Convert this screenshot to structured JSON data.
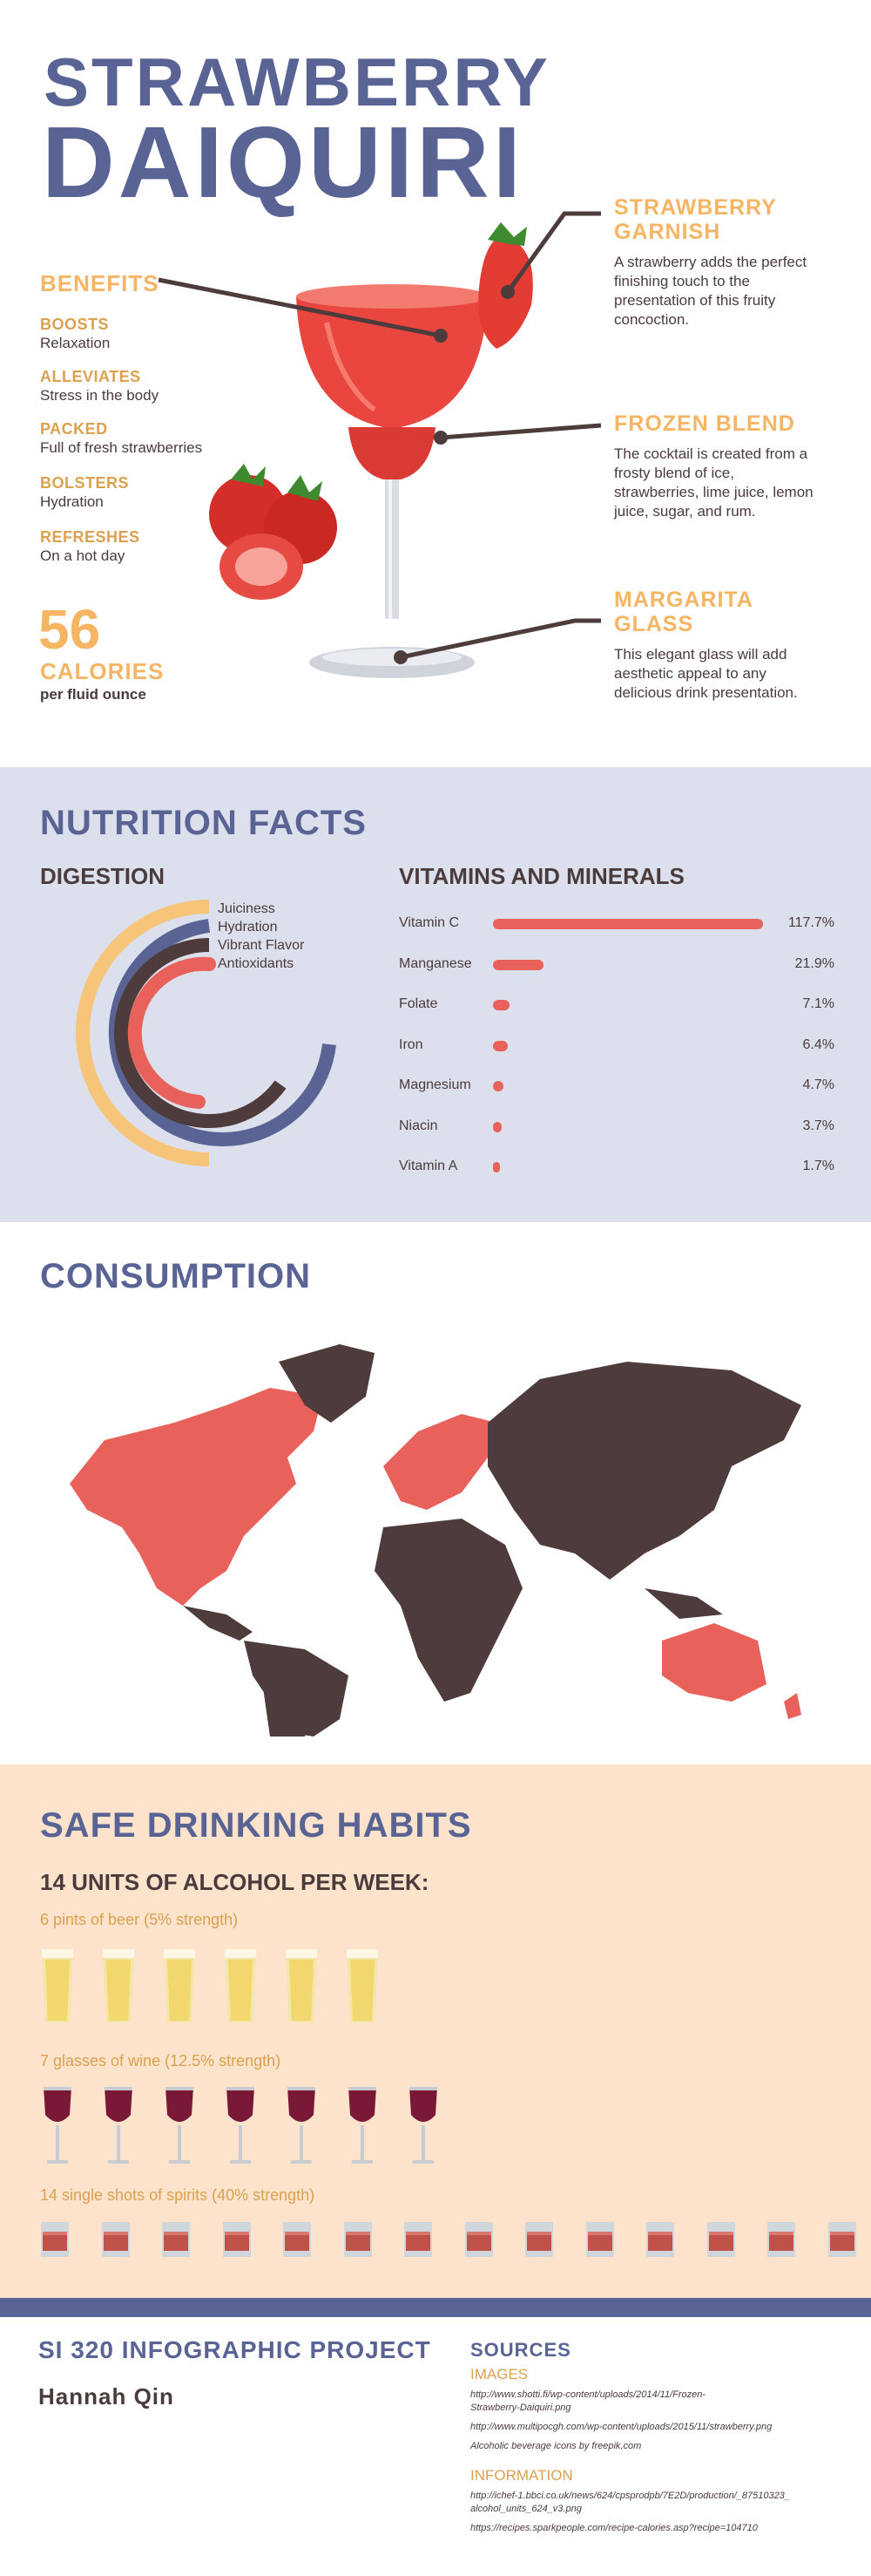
{
  "header": {
    "title_line1": "STRAWBERRY",
    "title_line2": "DAIQUIRI"
  },
  "benefits": {
    "heading": "BENEFITS",
    "items": [
      {
        "label": "BOOSTS",
        "desc": "Relaxation"
      },
      {
        "label": "ALLEVIATES",
        "desc": "Stress in the body"
      },
      {
        "label": "PACKED",
        "desc": "Full of fresh strawberries"
      },
      {
        "label": "BOLSTERS",
        "desc": "Hydration"
      },
      {
        "label": "REFRESHES",
        "desc": "On a hot day"
      }
    ],
    "calories_number": "56",
    "calories_label": "CALORIES",
    "calories_unit": "per fluid ounce"
  },
  "callouts": [
    {
      "heading_line1": "STRAWBERRY",
      "heading_line2": "GARNISH",
      "text": [
        "A strawberry adds the perfect",
        "finishing touch to the",
        "presentation of this fruity",
        "concoction."
      ]
    },
    {
      "heading_line1": "FROZEN BLEND",
      "heading_line2": "",
      "text": [
        "The cocktail is created from a",
        "frosty blend of ice,",
        "strawberries, lime juice, lemon",
        "juice, sugar, and rum."
      ]
    },
    {
      "heading_line1": "MARGARITA",
      "heading_line2": "GLASS",
      "text": [
        "This elegant glass will add",
        "aesthetic appeal to any",
        "delicious drink presentation."
      ]
    }
  ],
  "nutrition": {
    "heading": "NUTRITION FACTS",
    "digestion_heading": "DIGESTION",
    "digestion_legend": [
      "Juiciness",
      "Hydration",
      "Vibrant Flavor",
      "Antioxidants"
    ],
    "vitamins_heading": "VITAMINS AND MINERALS",
    "vitamins": [
      {
        "name": "Vitamin C",
        "value": "117.7%",
        "pct": 117.7
      },
      {
        "name": "Manganese",
        "value": "21.9%",
        "pct": 21.9
      },
      {
        "name": "Folate",
        "value": "7.1%",
        "pct": 7.1
      },
      {
        "name": "Iron",
        "value": "6.4%",
        "pct": 6.4
      },
      {
        "name": "Magnesium",
        "value": "4.7%",
        "pct": 4.7
      },
      {
        "name": "Niacin",
        "value": "3.7%",
        "pct": 3.7
      },
      {
        "name": "Vitamin A",
        "value": "1.7%",
        "pct": 1.7
      }
    ]
  },
  "consumption": {
    "heading": "CONSUMPTION"
  },
  "safe": {
    "heading": "SAFE DRINKING HABITS",
    "subheading": "14 UNITS OF ALCOHOL PER WEEK:",
    "beer_label": "6 pints of beer (5% strength)",
    "beer_count": 6,
    "wine_label": "7 glasses of wine (12.5% strength)",
    "wine_count": 7,
    "spirits_label": "14 single shots of spirits (40% strength)",
    "spirits_count": 14
  },
  "footer": {
    "project": "SI 320 INFOGRAPHIC PROJECT",
    "author": "Hannah Qin",
    "sources_heading": "SOURCES",
    "images_heading": "IMAGES",
    "image_sources": [
      "http://www.shotti.fi/wp-content/uploads/2014/11/Frozen-",
      "Strawberry-Daiquiri.png",
      "http://www.multipocgh.com/wp-content/uploads/2015/11/strawberry.png",
      "Alcoholic beverage icons by freepik.com"
    ],
    "info_heading": "INFORMATION",
    "info_sources": [
      "http://ichef-1.bbci.co.uk/news/624/cpsprodpb/7E2D/production/_87510323_",
      "alcohol_units_624_v3.png",
      "https://recipes.sparkpeople.com/recipe-calories.asp?recipe=104710"
    ]
  },
  "colors": {
    "blue": "#5a6494",
    "orange": "#f6b563",
    "red": "#e8615a",
    "brown": "#4e3b3c",
    "lavender": "#dcdfec",
    "peach": "#fde3cb"
  }
}
